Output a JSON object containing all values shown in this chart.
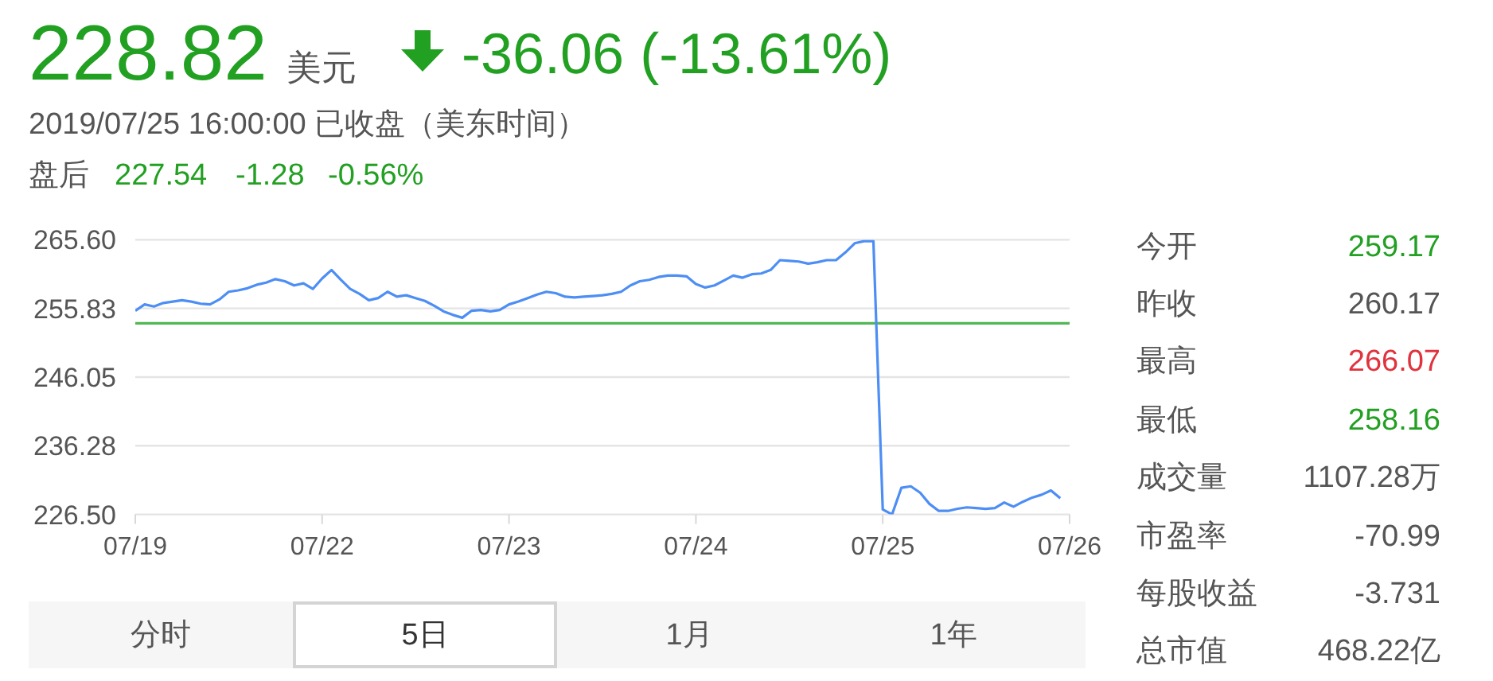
{
  "chart_data": [
    {
      "type": "other",
      "annotations": [
        "228.82",
        "美元",
        "-36.06 (-13.61%)",
        "2019/07/25 16:00:00 已收盘（美东时间）",
        "盘后",
        "227.54",
        "-1.28",
        "-0.56%"
      ]
    },
    {
      "type": "line",
      "categories": [
        "07/19",
        null,
        null,
        null,
        null,
        null,
        null,
        null,
        null,
        null,
        null,
        null,
        null,
        null,
        null,
        null,
        null,
        null,
        null,
        null,
        "07/22",
        null,
        null,
        null,
        null,
        null,
        null,
        null,
        null,
        null,
        null,
        null,
        null,
        null,
        null,
        null,
        null,
        null,
        null,
        null,
        "07/23",
        null,
        null,
        null,
        null,
        null,
        null,
        null,
        null,
        null,
        null,
        null,
        null,
        null,
        null,
        null,
        null,
        null,
        null,
        null,
        "07/24",
        null,
        null,
        null,
        null,
        null,
        null,
        null,
        null,
        null,
        null,
        null,
        null,
        null,
        null,
        null,
        null,
        null,
        null,
        null,
        "07/25",
        null,
        null,
        null,
        null,
        null,
        null,
        null,
        null,
        null,
        null,
        null,
        null,
        null,
        null,
        null,
        null,
        null,
        null,
        null,
        "07/26"
      ],
      "series": [
        {
          "color": "#4d8ef5",
          "values": [
            255.5,
            256.4,
            256.1,
            256.6,
            256.8,
            257.0,
            256.8,
            256.5,
            256.4,
            257.1,
            258.2,
            258.4,
            258.7,
            259.2,
            259.5,
            260.0,
            259.7,
            259.1,
            259.4,
            258.6,
            260.1,
            261.3,
            259.9,
            258.6,
            257.9,
            257.0,
            257.3,
            258.2,
            257.5,
            257.7,
            257.3,
            256.9,
            256.2,
            255.4,
            254.9,
            254.5,
            255.5,
            255.6,
            255.4,
            255.6,
            256.4,
            256.8,
            257.3,
            257.8,
            258.2,
            258.0,
            257.5,
            257.4,
            257.5,
            257.6,
            257.7,
            257.9,
            258.2,
            259.1,
            259.7,
            259.9,
            260.3,
            260.5,
            260.5,
            260.4,
            259.3,
            258.8,
            259.1,
            259.8,
            260.5,
            260.2,
            260.7,
            260.8,
            261.3,
            262.7,
            262.6,
            262.5,
            262.2,
            262.4,
            262.7,
            262.7,
            263.8,
            265.1,
            265.4,
            265.4,
            227.2,
            226.5,
            230.3,
            230.5,
            229.6,
            228.0,
            227.0,
            227.0,
            227.3,
            227.5,
            227.4,
            227.3,
            227.4,
            228.2,
            227.6,
            228.3,
            228.9,
            229.3,
            229.9,
            228.8,
            null
          ]
        }
      ],
      "ylim": [
        226.5,
        265.6
      ],
      "yticks": [
        {
          "value": 265.6,
          "label": "265.60"
        },
        255.83,
        246.05,
        236.28,
        {
          "value": 226.5,
          "label": "226.50"
        }
      ],
      "grid": "y",
      "ref_lines": [
        {
          "axis": "y",
          "value": 253.7,
          "color": "#52b752"
        }
      ]
    },
    {
      "type": "other",
      "annotations": [
        "今开",
        "259.17",
        "昨收",
        "260.17",
        "最高",
        "266.07",
        "最低",
        "258.16",
        "成交量",
        "1107.28万",
        "市盈率",
        "-70.99",
        "每股收益",
        "-3.731",
        "总市值",
        "468.22亿"
      ]
    },
    {
      "type": "other",
      "annotations": [
        "分时",
        "5日",
        "1月",
        "1年"
      ]
    }
  ]
}
